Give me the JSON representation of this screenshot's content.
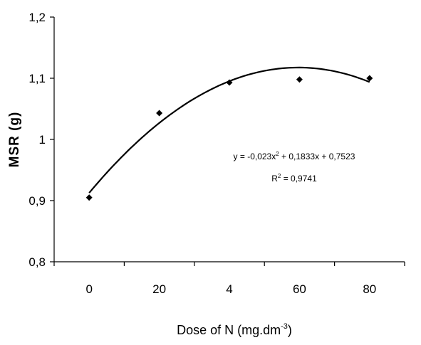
{
  "chart_data": {
    "type": "scatter",
    "xlabel_main": "Dose of N (mg.dm",
    "xlabel_sup": "-3",
    "xlabel_end": ")",
    "ylabel": "MSR (g)",
    "ylim": [
      0.8,
      1.2
    ],
    "yticks": [
      "0,8",
      "0,9",
      "1",
      "1,1",
      "1,2"
    ],
    "categories": [
      "0",
      "20",
      "4",
      "60",
      "80"
    ],
    "values": [
      0.905,
      1.043,
      1.093,
      1.098,
      1.1
    ],
    "trendline": {
      "type": "polynomial",
      "order": 2,
      "a": -0.023,
      "b": 0.1833,
      "c": 0.7523,
      "x_start": 1,
      "x_end": 5
    },
    "equation": {
      "prefix": "y = -0,023x",
      "sup": "2",
      "rest": " + 0,1833x + 0,7523"
    },
    "r2": {
      "prefix": "R",
      "sup": "2",
      "rest": " = 0,9741"
    },
    "grid": false,
    "legend": "none",
    "marker_color": "#000000",
    "line_color": "#000000"
  }
}
